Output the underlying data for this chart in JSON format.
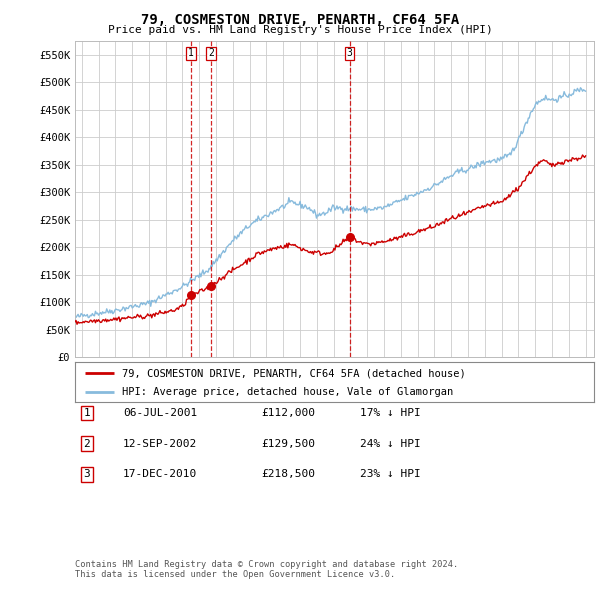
{
  "title": "79, COSMESTON DRIVE, PENARTH, CF64 5FA",
  "subtitle": "Price paid vs. HM Land Registry's House Price Index (HPI)",
  "ylabel_ticks": [
    "£0",
    "£50K",
    "£100K",
    "£150K",
    "£200K",
    "£250K",
    "£300K",
    "£350K",
    "£400K",
    "£450K",
    "£500K",
    "£550K"
  ],
  "ytick_values": [
    0,
    50000,
    100000,
    150000,
    200000,
    250000,
    300000,
    350000,
    400000,
    450000,
    500000,
    550000
  ],
  "ylim": [
    0,
    575000
  ],
  "xlim_start": 1994.6,
  "xlim_end": 2025.5,
  "transaction_dates": [
    2001.508,
    2002.703,
    2010.958
  ],
  "transaction_labels": [
    "1",
    "2",
    "3"
  ],
  "transaction_prices": [
    112000,
    129500,
    218500
  ],
  "red_line_color": "#cc0000",
  "blue_line_color": "#88bbdd",
  "vline_color": "#cc0000",
  "grid_color": "#cccccc",
  "legend_red_label": "79, COSMESTON DRIVE, PENARTH, CF64 5FA (detached house)",
  "legend_blue_label": "HPI: Average price, detached house, Vale of Glamorgan",
  "table_rows": [
    [
      "1",
      "06-JUL-2001",
      "£112,000",
      "17% ↓ HPI"
    ],
    [
      "2",
      "12-SEP-2002",
      "£129,500",
      "24% ↓ HPI"
    ],
    [
      "3",
      "17-DEC-2010",
      "£218,500",
      "23% ↓ HPI"
    ]
  ],
  "footer_text": "Contains HM Land Registry data © Crown copyright and database right 2024.\nThis data is licensed under the Open Government Licence v3.0.",
  "background_color": "#ffffff",
  "plot_bg_color": "#ffffff"
}
